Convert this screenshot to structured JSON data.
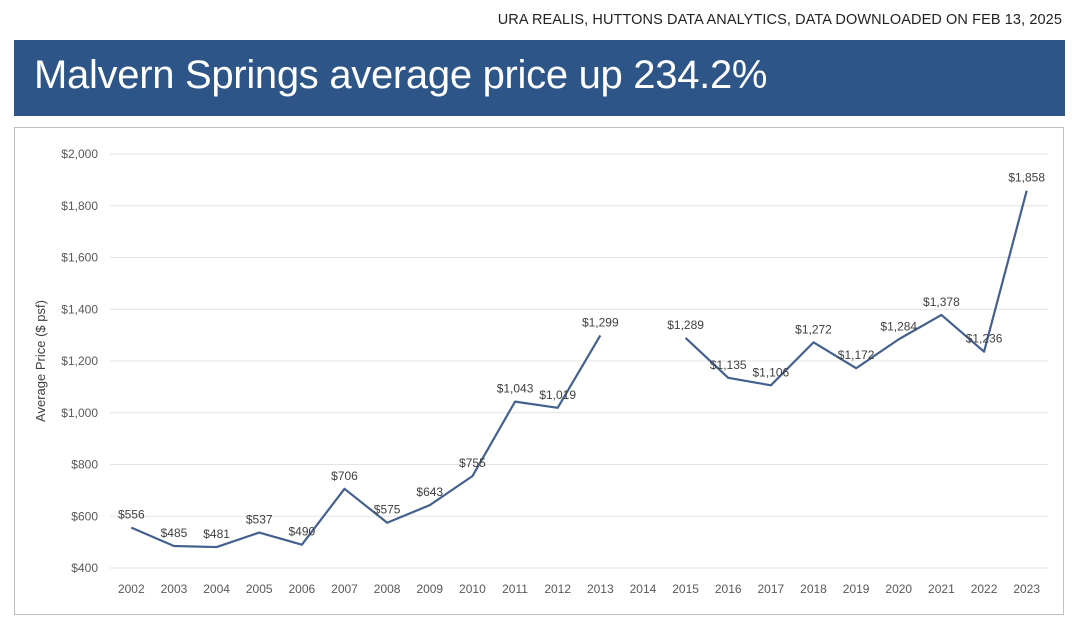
{
  "source_note": "URA REALIS, HUTTONS DATA ANALYTICS, DATA DOWNLOADED ON FEB 13, 2025",
  "banner": {
    "title": "Malvern Springs average price up 234.2%"
  },
  "colors": {
    "banner_bg": "#2d5588",
    "line": "#44608f",
    "grid": "#e3e3e3"
  },
  "chart_data": {
    "type": "line",
    "title": "",
    "xlabel": "",
    "ylabel": "Average Price ($ psf)",
    "categories": [
      "2002",
      "2003",
      "2004",
      "2005",
      "2006",
      "2007",
      "2008",
      "2009",
      "2010",
      "2011",
      "2012",
      "2013",
      "2014",
      "2015",
      "2016",
      "2017",
      "2018",
      "2019",
      "2020",
      "2021",
      "2022",
      "2023"
    ],
    "series": [
      {
        "values": [
          556,
          485,
          481,
          537,
          490,
          706,
          575,
          643,
          755,
          1043,
          1019,
          1299,
          null,
          1289,
          1135,
          1106,
          1272,
          1172,
          1284,
          1378,
          1236,
          1858
        ],
        "labels": [
          "$556",
          "$485",
          "$481",
          "$537",
          "$490",
          "$706",
          "$575",
          "$643",
          "$755",
          "$1,043",
          "$1,019",
          "$1,299",
          null,
          "$1,289",
          "$1,135",
          "$1,106",
          "$1,272",
          "$1,172",
          "$1,284",
          "$1,378",
          "$1,236",
          "$1,858"
        ]
      }
    ],
    "ylim": [
      400,
      2000
    ],
    "yticks": [
      400,
      600,
      800,
      1000,
      1200,
      1400,
      1600,
      1800,
      2000
    ],
    "ytick_labels": [
      "$400",
      "$600",
      "$800",
      "$1,000",
      "$1,200",
      "$1,400",
      "$1,600",
      "$1,800",
      "$2,000"
    ],
    "grid": true,
    "legend": false
  }
}
